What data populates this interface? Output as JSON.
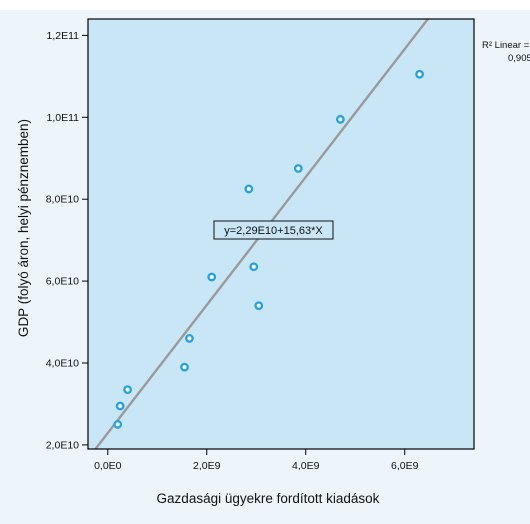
{
  "chart_data": {
    "type": "scatter",
    "title": "",
    "xlabel": "Gazdasági ügyekre fordított kiadások",
    "ylabel": "GDP (folyó áron, helyi pénznemben)",
    "xlim": [
      -400000000.0,
      7400000000.0
    ],
    "ylim": [
      19000000000.0,
      124000000000.0
    ],
    "x_ticks": [
      0,
      2000000000.0,
      4000000000.0,
      6000000000.0
    ],
    "x_tick_labels": [
      "0,0E0",
      "2,0E9",
      "4,0E9",
      "6,0E9"
    ],
    "y_ticks": [
      20000000000.0,
      40000000000.0,
      60000000000.0,
      80000000000.0,
      100000000000.0,
      120000000000.0
    ],
    "y_tick_labels": [
      "2,0E10",
      "4,0E10",
      "6,0E10",
      "8,0E10",
      "1,0E11",
      "1,2E11"
    ],
    "points": [
      {
        "x": 200000000.0,
        "y": 25000000000.0
      },
      {
        "x": 250000000.0,
        "y": 29500000000.0
      },
      {
        "x": 400000000.0,
        "y": 33500000000.0
      },
      {
        "x": 1550000000.0,
        "y": 39000000000.0
      },
      {
        "x": 1650000000.0,
        "y": 46000000000.0
      },
      {
        "x": 2100000000.0,
        "y": 61000000000.0
      },
      {
        "x": 2850000000.0,
        "y": 82500000000.0
      },
      {
        "x": 2950000000.0,
        "y": 63500000000.0
      },
      {
        "x": 3050000000.0,
        "y": 54000000000.0
      },
      {
        "x": 3850000000.0,
        "y": 87500000000.0
      },
      {
        "x": 4700000000.0,
        "y": 99500000000.0
      },
      {
        "x": 6300000000.0,
        "y": 110500000000.0
      }
    ],
    "fit_line": {
      "intercept": 22900000000.0,
      "slope": 15.63
    },
    "equation_label": "y=2,29E10+15,63*X",
    "r2_label_line1": "R² Linear =",
    "r2_label_line2": "0,905",
    "colors": {
      "outer_background": "#edf5fb",
      "plot_background": "#c9e6f7",
      "marker": "#27a2dc",
      "fit_line": "#9a9a9a",
      "axis": "#000000"
    },
    "grid": false
  }
}
